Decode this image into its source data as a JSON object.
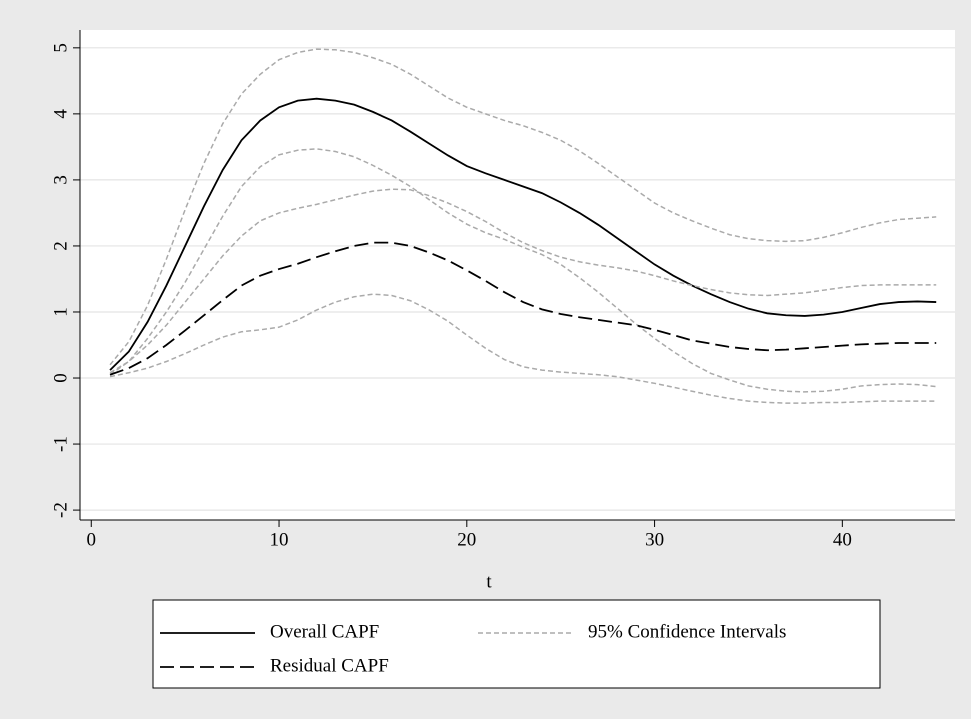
{
  "chart_data": {
    "type": "line",
    "xlabel": "t",
    "x": [
      1,
      2,
      3,
      4,
      5,
      6,
      7,
      8,
      9,
      10,
      11,
      12,
      13,
      14,
      15,
      16,
      17,
      18,
      19,
      20,
      21,
      22,
      23,
      24,
      25,
      26,
      27,
      28,
      29,
      30,
      31,
      32,
      33,
      34,
      35,
      36,
      37,
      38,
      39,
      40,
      41,
      42,
      43,
      44,
      45
    ],
    "series": [
      {
        "name": "Overall CAPF",
        "color": "#000000",
        "dash": "solid",
        "values": [
          0.12,
          0.4,
          0.85,
          1.4,
          2.0,
          2.6,
          3.15,
          3.6,
          3.9,
          4.1,
          4.2,
          4.23,
          4.2,
          4.14,
          4.03,
          3.9,
          3.73,
          3.55,
          3.37,
          3.21,
          3.1,
          3.0,
          2.9,
          2.8,
          2.66,
          2.5,
          2.32,
          2.12,
          1.92,
          1.72,
          1.55,
          1.4,
          1.27,
          1.15,
          1.05,
          0.98,
          0.95,
          0.94,
          0.96,
          1.0,
          1.06,
          1.12,
          1.15,
          1.16,
          1.15
        ]
      },
      {
        "name": "95% Confidence Intervals",
        "color": "#aaaaaa",
        "dash": "short",
        "values": [
          0.2,
          0.55,
          1.1,
          1.8,
          2.55,
          3.25,
          3.85,
          4.3,
          4.6,
          4.82,
          4.93,
          4.98,
          4.97,
          4.93,
          4.85,
          4.75,
          4.6,
          4.42,
          4.24,
          4.1,
          4.0,
          3.9,
          3.82,
          3.72,
          3.6,
          3.44,
          3.25,
          3.05,
          2.85,
          2.65,
          2.5,
          2.38,
          2.27,
          2.17,
          2.11,
          2.08,
          2.07,
          2.08,
          2.13,
          2.2,
          2.28,
          2.35,
          2.4,
          2.42,
          2.44
        ]
      },
      {
        "color": "#aaaaaa",
        "dash": "short",
        "values": [
          0.05,
          0.25,
          0.6,
          1.0,
          1.45,
          1.95,
          2.45,
          2.9,
          3.2,
          3.38,
          3.45,
          3.47,
          3.43,
          3.35,
          3.22,
          3.07,
          2.9,
          2.7,
          2.5,
          2.33,
          2.2,
          2.1,
          1.98,
          1.87,
          1.72,
          1.52,
          1.3,
          1.06,
          0.82,
          0.6,
          0.4,
          0.22,
          0.07,
          -0.03,
          -0.12,
          -0.17,
          -0.2,
          -0.21,
          -0.2,
          -0.17,
          -0.12,
          -0.1,
          -0.09,
          -0.1,
          -0.13
        ]
      },
      {
        "color": "#aaaaaa",
        "dash": "short",
        "values": [
          0.08,
          0.25,
          0.5,
          0.8,
          1.15,
          1.5,
          1.85,
          2.15,
          2.38,
          2.5,
          2.57,
          2.63,
          2.7,
          2.77,
          2.83,
          2.86,
          2.85,
          2.76,
          2.65,
          2.52,
          2.37,
          2.2,
          2.05,
          1.93,
          1.83,
          1.76,
          1.71,
          1.67,
          1.62,
          1.55,
          1.47,
          1.4,
          1.34,
          1.29,
          1.26,
          1.25,
          1.27,
          1.29,
          1.33,
          1.37,
          1.4,
          1.41,
          1.41,
          1.41,
          1.41
        ]
      },
      {
        "color": "#aaaaaa",
        "dash": "short",
        "values": [
          0.02,
          0.08,
          0.15,
          0.25,
          0.37,
          0.5,
          0.62,
          0.7,
          0.73,
          0.77,
          0.88,
          1.03,
          1.15,
          1.23,
          1.27,
          1.25,
          1.17,
          1.03,
          0.86,
          0.65,
          0.45,
          0.28,
          0.17,
          0.12,
          0.09,
          0.07,
          0.05,
          0.02,
          -0.03,
          -0.08,
          -0.14,
          -0.2,
          -0.26,
          -0.31,
          -0.35,
          -0.37,
          -0.38,
          -0.38,
          -0.37,
          -0.37,
          -0.36,
          -0.35,
          -0.35,
          -0.35,
          -0.35
        ]
      },
      {
        "name": "Residual CAPF",
        "color": "#000000",
        "dash": "long",
        "values": [
          0.05,
          0.15,
          0.3,
          0.5,
          0.72,
          0.95,
          1.18,
          1.4,
          1.55,
          1.65,
          1.73,
          1.83,
          1.92,
          2.0,
          2.05,
          2.05,
          2.0,
          1.9,
          1.78,
          1.63,
          1.47,
          1.3,
          1.15,
          1.04,
          0.97,
          0.92,
          0.88,
          0.84,
          0.8,
          0.73,
          0.65,
          0.57,
          0.52,
          0.47,
          0.44,
          0.42,
          0.43,
          0.45,
          0.47,
          0.49,
          0.51,
          0.52,
          0.53,
          0.53,
          0.53
        ]
      }
    ],
    "xlim": [
      -0.6,
      46
    ],
    "ylim": [
      -2.15,
      5.27
    ],
    "xticks": [
      0,
      10,
      20,
      30,
      40
    ],
    "yticks": [
      -2,
      -1,
      0,
      1,
      2,
      3,
      4,
      5
    ],
    "grid": true
  }
}
